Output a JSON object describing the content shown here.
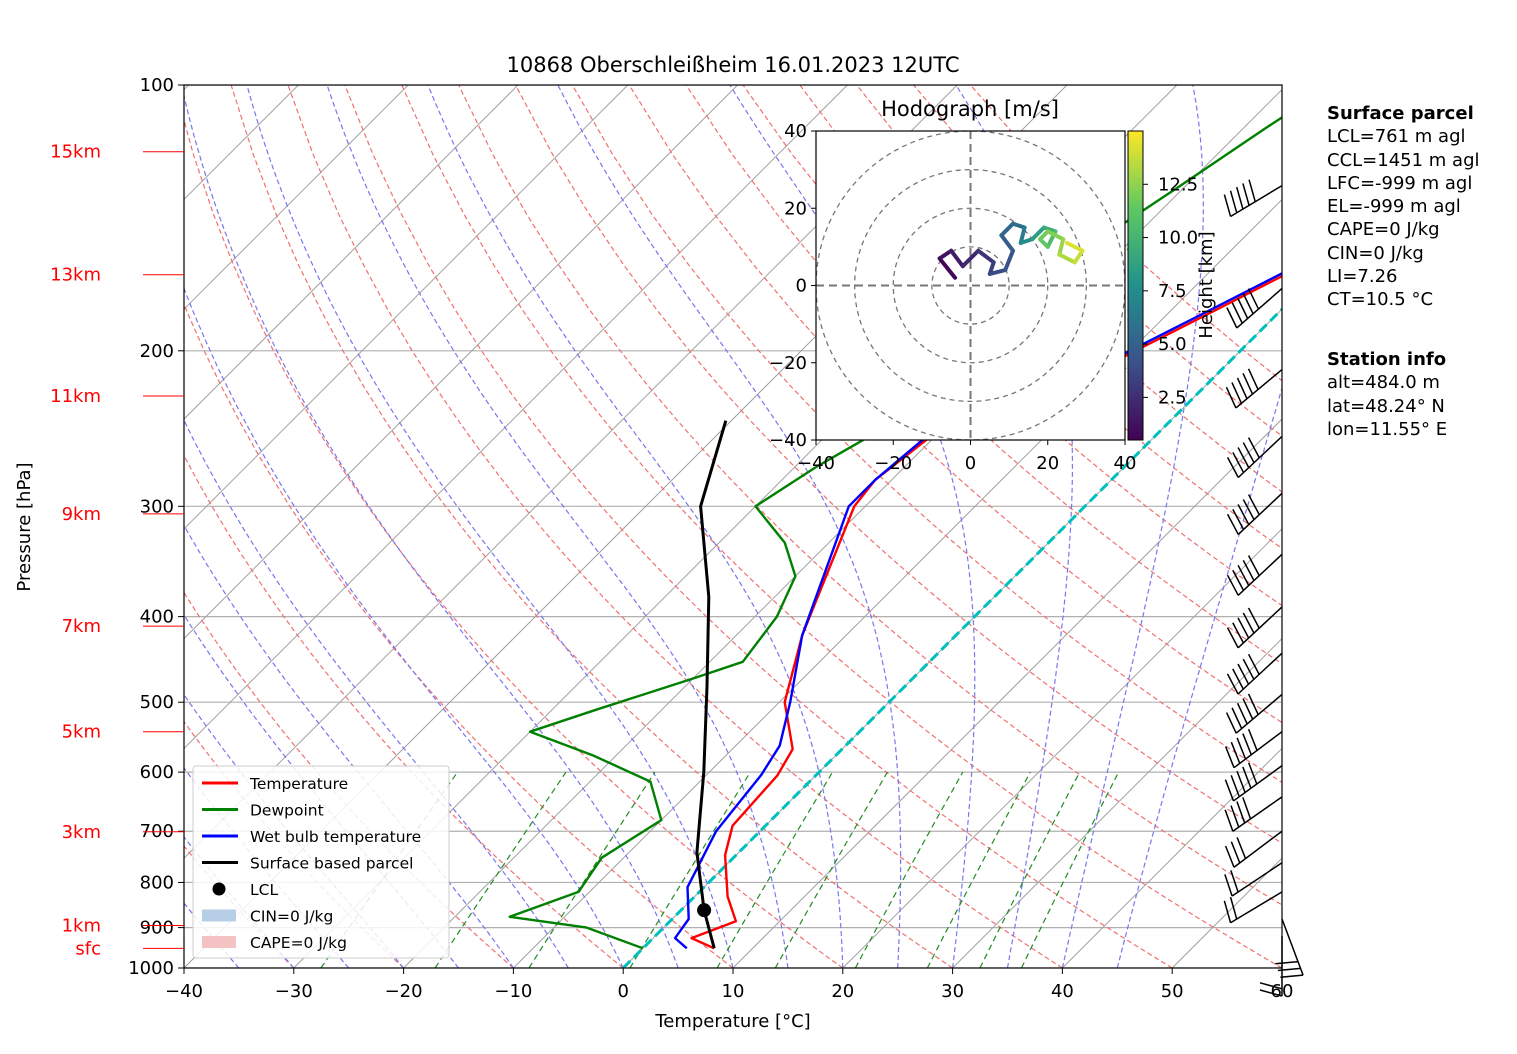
{
  "chart_data": {
    "type": "line",
    "title": "10868 Oberschleißheim 16.01.2023 12UTC",
    "xlabel": "Temperature [°C]",
    "ylabel": "Pressure [hPa]",
    "xlim": [
      -40,
      60
    ],
    "ylim": [
      1000,
      100
    ],
    "y_scale": "log",
    "x_ticks": [
      "−40",
      "−30",
      "−20",
      "−10",
      "0",
      "10",
      "20",
      "30",
      "40",
      "50",
      "60"
    ],
    "y_ticks": [
      {
        "p": 100,
        "label": "100"
      },
      {
        "p": 200,
        "label": "200"
      },
      {
        "p": 300,
        "label": "300"
      },
      {
        "p": 400,
        "label": "400"
      },
      {
        "p": 500,
        "label": "500"
      },
      {
        "p": 600,
        "label": "600"
      },
      {
        "p": 700,
        "label": "700"
      },
      {
        "p": 800,
        "label": "800"
      },
      {
        "p": 900,
        "label": "900"
      },
      {
        "p": 1000,
        "label": "1000"
      }
    ],
    "height_labels": [
      {
        "label": "15km",
        "p": 119
      },
      {
        "label": "13km",
        "p": 164
      },
      {
        "label": "11km",
        "p": 225
      },
      {
        "label": "9km",
        "p": 306
      },
      {
        "label": "7km",
        "p": 410
      },
      {
        "label": "5km",
        "p": 540
      },
      {
        "label": "3km",
        "p": 701
      },
      {
        "label": "1km",
        "p": 895
      },
      {
        "label": "sfc",
        "p": 950
      }
    ],
    "legend": {
      "placement": "lower-left",
      "entries": [
        {
          "label": "Temperature",
          "color": "#ff0000",
          "kind": "line"
        },
        {
          "label": "Dewpoint",
          "color": "#008000",
          "kind": "line"
        },
        {
          "label": "Wet bulb temperature",
          "color": "#0000ff",
          "kind": "line"
        },
        {
          "label": "Surface based parcel",
          "color": "#000000",
          "kind": "line"
        },
        {
          "label": "LCL",
          "color": "#000000",
          "kind": "dot"
        },
        {
          "label": "CIN=0 J/kg",
          "color": "#b7cfe6",
          "kind": "patch"
        },
        {
          "label": "CAPE=0 J/kg",
          "color": "#f4c2c2",
          "kind": "patch"
        }
      ]
    },
    "series": [
      {
        "name": "Temperature",
        "color": "#ff0000",
        "points": [
          [
            6.5,
            950
          ],
          [
            3.5,
            925
          ],
          [
            6,
            885
          ],
          [
            3,
            830
          ],
          [
            -1,
            745
          ],
          [
            -3,
            690
          ],
          [
            -3.5,
            605
          ],
          [
            -4.5,
            565
          ],
          [
            -9.5,
            500
          ],
          [
            -14,
            420
          ],
          [
            -21,
            300
          ],
          [
            -21.5,
            280
          ],
          [
            -20,
            240
          ],
          [
            -12,
            215
          ],
          [
            -6,
            180
          ],
          [
            -1,
            155
          ],
          [
            4,
            135
          ],
          [
            7,
            118
          ],
          [
            8,
            98
          ]
        ]
      },
      {
        "name": "Wet bulb temperature",
        "color": "#0000ff",
        "points": [
          [
            4,
            950
          ],
          [
            2,
            925
          ],
          [
            1.5,
            880
          ],
          [
            -1.5,
            810
          ],
          [
            -4,
            700
          ],
          [
            -5,
            605
          ],
          [
            -6,
            560
          ],
          [
            -9,
            500
          ],
          [
            -14,
            420
          ],
          [
            -21.5,
            300
          ],
          [
            -21.5,
            280
          ],
          [
            -20.5,
            240
          ],
          [
            -12.5,
            215
          ],
          [
            -6.5,
            180
          ],
          [
            -1.5,
            155
          ],
          [
            3.5,
            135
          ],
          [
            6.5,
            118
          ],
          [
            7.5,
            98
          ]
        ]
      },
      {
        "name": "Dewpoint",
        "color": "#008000",
        "points": [
          [
            0,
            950
          ],
          [
            -7,
            900
          ],
          [
            -15,
            875
          ],
          [
            -11,
            820
          ],
          [
            -12,
            750
          ],
          [
            -10,
            680
          ],
          [
            -14.5,
            615
          ],
          [
            -22,
            575
          ],
          [
            -30,
            540
          ],
          [
            -26,
            510
          ],
          [
            -20,
            470
          ],
          [
            -17,
            450
          ],
          [
            -18,
            400
          ],
          [
            -20,
            360
          ],
          [
            -24,
            330
          ],
          [
            -30,
            300
          ],
          [
            -28,
            270
          ],
          [
            -26,
            250
          ],
          [
            -31,
            240
          ],
          [
            -30,
            225
          ],
          [
            -31,
            200
          ],
          [
            -27,
            175
          ],
          [
            -23,
            150
          ],
          [
            -20.5,
            130
          ],
          [
            -18,
            112
          ],
          [
            -15,
            95
          ]
        ]
      },
      {
        "name": "Surface based parcel",
        "color": "#000000",
        "points": [
          [
            6.5,
            950
          ],
          [
            2.1,
            860
          ],
          [
            -3.8,
            740
          ],
          [
            -10.5,
            600
          ],
          [
            -18,
            480
          ],
          [
            -26,
            380
          ],
          [
            -35,
            300
          ],
          [
            -40.5,
            240
          ]
        ]
      }
    ],
    "lcl": {
      "T": 2.1,
      "p": 860,
      "height": "761 m agl"
    },
    "hodograph": {
      "title": "Hodograph [m/s]",
      "xlim": [
        -40,
        40
      ],
      "ylim": [
        -40,
        40
      ],
      "x_ticks": [
        "−40",
        "−20",
        "0",
        "20",
        "40"
      ],
      "y_ticks": [
        "40",
        "20",
        "0",
        "−20",
        "−40"
      ],
      "rings": [
        10,
        20,
        30,
        40
      ],
      "colorbar": {
        "label": "Height [km]",
        "ticks": [
          "2.5",
          "5.0",
          "7.5",
          "10.0",
          "12.5"
        ],
        "range": [
          0.5,
          15
        ]
      },
      "path": [
        {
          "u": -4,
          "v": 2,
          "h": 0.5
        },
        {
          "u": -8,
          "v": 7,
          "h": 1.0
        },
        {
          "u": -5,
          "v": 9,
          "h": 1.5
        },
        {
          "u": -2,
          "v": 5,
          "h": 2.0
        },
        {
          "u": 2,
          "v": 9,
          "h": 2.5
        },
        {
          "u": 6,
          "v": 6,
          "h": 3.0
        },
        {
          "u": 5,
          "v": 3,
          "h": 3.5
        },
        {
          "u": 9,
          "v": 4,
          "h": 4.0
        },
        {
          "u": 11,
          "v": 9,
          "h": 4.5
        },
        {
          "u": 8,
          "v": 13,
          "h": 5.0
        },
        {
          "u": 11,
          "v": 16,
          "h": 5.5
        },
        {
          "u": 14,
          "v": 15,
          "h": 6.0
        },
        {
          "u": 13,
          "v": 11,
          "h": 7.0
        },
        {
          "u": 16,
          "v": 12,
          "h": 8.0
        },
        {
          "u": 19,
          "v": 15,
          "h": 9.0
        },
        {
          "u": 22,
          "v": 14,
          "h": 10.0
        },
        {
          "u": 20,
          "v": 10,
          "h": 11.0
        },
        {
          "u": 18,
          "v": 12,
          "h": 11.5
        },
        {
          "u": 20,
          "v": 14,
          "h": 12.0
        },
        {
          "u": 24,
          "v": 12,
          "h": 12.5
        },
        {
          "u": 23,
          "v": 8,
          "h": 13.0
        },
        {
          "u": 27,
          "v": 6,
          "h": 13.5
        },
        {
          "u": 29,
          "v": 9,
          "h": 14.0
        },
        {
          "u": 25,
          "v": 11,
          "h": 14.5
        }
      ]
    },
    "wind_barbs": [
      {
        "p": 920,
        "u": 0,
        "v": 5
      },
      {
        "p": 880,
        "u": -3,
        "v": 8
      },
      {
        "p": 820,
        "u": 5,
        "v": 3
      },
      {
        "p": 760,
        "u": 6,
        "v": 4
      },
      {
        "p": 700,
        "u": 8,
        "v": 6
      },
      {
        "p": 640,
        "u": 10,
        "v": 7
      },
      {
        "p": 590,
        "u": 11,
        "v": 8
      },
      {
        "p": 540,
        "u": 12,
        "v": 9
      },
      {
        "p": 490,
        "u": 13,
        "v": 11
      },
      {
        "p": 440,
        "u": 14,
        "v": 13
      },
      {
        "p": 390,
        "u": 15,
        "v": 14
      },
      {
        "p": 340,
        "u": 16,
        "v": 15
      },
      {
        "p": 290,
        "u": 17,
        "v": 16
      },
      {
        "p": 250,
        "u": 17,
        "v": 16
      },
      {
        "p": 210,
        "u": 18,
        "v": 15
      },
      {
        "p": 170,
        "u": 16,
        "v": 14
      },
      {
        "p": 130,
        "u": 20,
        "v": 12
      }
    ]
  },
  "surface_parcel": {
    "header": "Surface parcel",
    "lines": [
      "LCL=761 m agl",
      "CCL=1451 m agl",
      "LFC=-999 m agl",
      "EL=-999 m agl",
      "CAPE=0 J/kg",
      "CIN=0 J/kg",
      "LI=7.26",
      "CT=10.5 °C"
    ]
  },
  "station_info": {
    "header": "Station info",
    "lines": [
      "alt=484.0 m",
      "lat=48.24° N",
      "lon=11.55° E"
    ]
  }
}
